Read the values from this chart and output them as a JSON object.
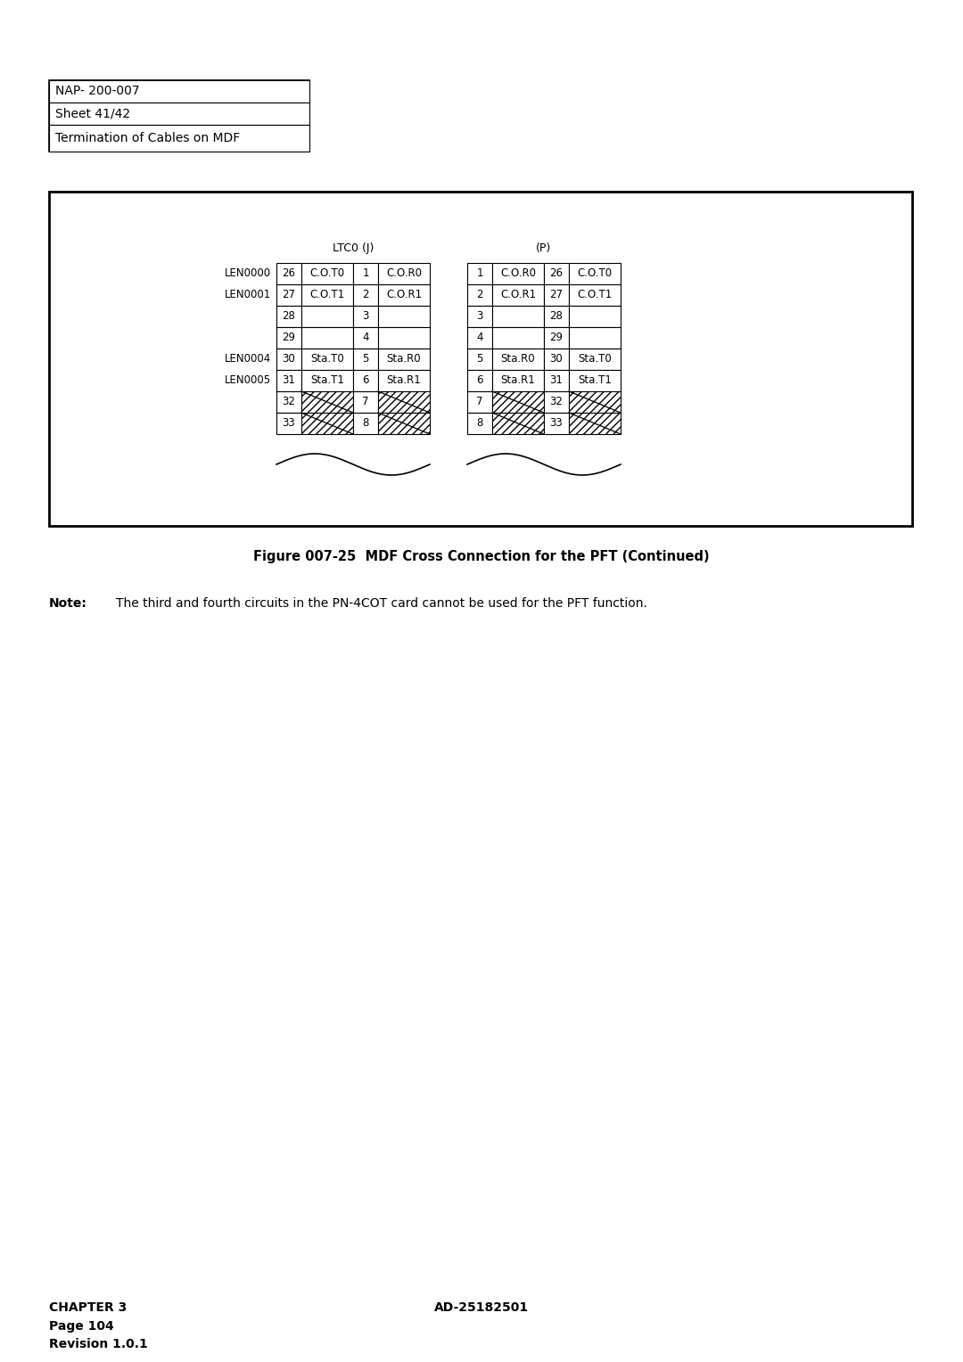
{
  "title": "NAP- 200-007",
  "sheet": "Sheet 41/42",
  "subject": "Termination of Cables on MDF",
  "figure_caption": "Figure 007-25  MDF Cross Connection for the PFT (Continued)",
  "note_label": "Note:",
  "note_text": "The third and fourth circuits in the PN-4COT card cannot be used for the PFT function.",
  "footer_left": "CHAPTER 3\nPage 104\nRevision 1.0.1",
  "footer_right": "AD-25182501",
  "ltc_label": "LTC0 (J)",
  "p_label": "(P)",
  "left_rows": [
    {
      "label": "LEN0000",
      "c1": "26",
      "c2": "C.O.T0",
      "c3": "1",
      "c4": "C.O.R0",
      "hatched": false
    },
    {
      "label": "LEN0001",
      "c1": "27",
      "c2": "C.O.T1",
      "c3": "2",
      "c4": "C.O.R1",
      "hatched": false
    },
    {
      "label": "",
      "c1": "28",
      "c2": "",
      "c3": "3",
      "c4": "",
      "hatched": false
    },
    {
      "label": "",
      "c1": "29",
      "c2": "",
      "c3": "4",
      "c4": "",
      "hatched": false
    },
    {
      "label": "LEN0004",
      "c1": "30",
      "c2": "Sta.T0",
      "c3": "5",
      "c4": "Sta.R0",
      "hatched": false
    },
    {
      "label": "LEN0005",
      "c1": "31",
      "c2": "Sta.T1",
      "c3": "6",
      "c4": "Sta.R1",
      "hatched": false
    },
    {
      "label": "",
      "c1": "32",
      "c2": "",
      "c3": "7",
      "c4": "",
      "hatched": true
    },
    {
      "label": "",
      "c1": "33",
      "c2": "",
      "c3": "8",
      "c4": "",
      "hatched": true
    }
  ],
  "right_rows": [
    {
      "c1": "1",
      "c2": "C.O.R0",
      "c3": "26",
      "c4": "C.O.T0",
      "hatched": false
    },
    {
      "c1": "2",
      "c2": "C.O.R1",
      "c3": "27",
      "c4": "C.O.T1",
      "hatched": false
    },
    {
      "c1": "3",
      "c2": "",
      "c3": "28",
      "c4": "",
      "hatched": false
    },
    {
      "c1": "4",
      "c2": "",
      "c3": "29",
      "c4": "",
      "hatched": false
    },
    {
      "c1": "5",
      "c2": "Sta.R0",
      "c3": "30",
      "c4": "Sta.T0",
      "hatched": false
    },
    {
      "c1": "6",
      "c2": "Sta.R1",
      "c3": "31",
      "c4": "Sta.T1",
      "hatched": false
    },
    {
      "c1": "7",
      "c2": "",
      "c3": "32",
      "c4": "",
      "hatched": true
    },
    {
      "c1": "8",
      "c2": "",
      "c3": "33",
      "c4": "",
      "hatched": true
    }
  ],
  "bg_color": "#ffffff",
  "text_color": "#000000"
}
